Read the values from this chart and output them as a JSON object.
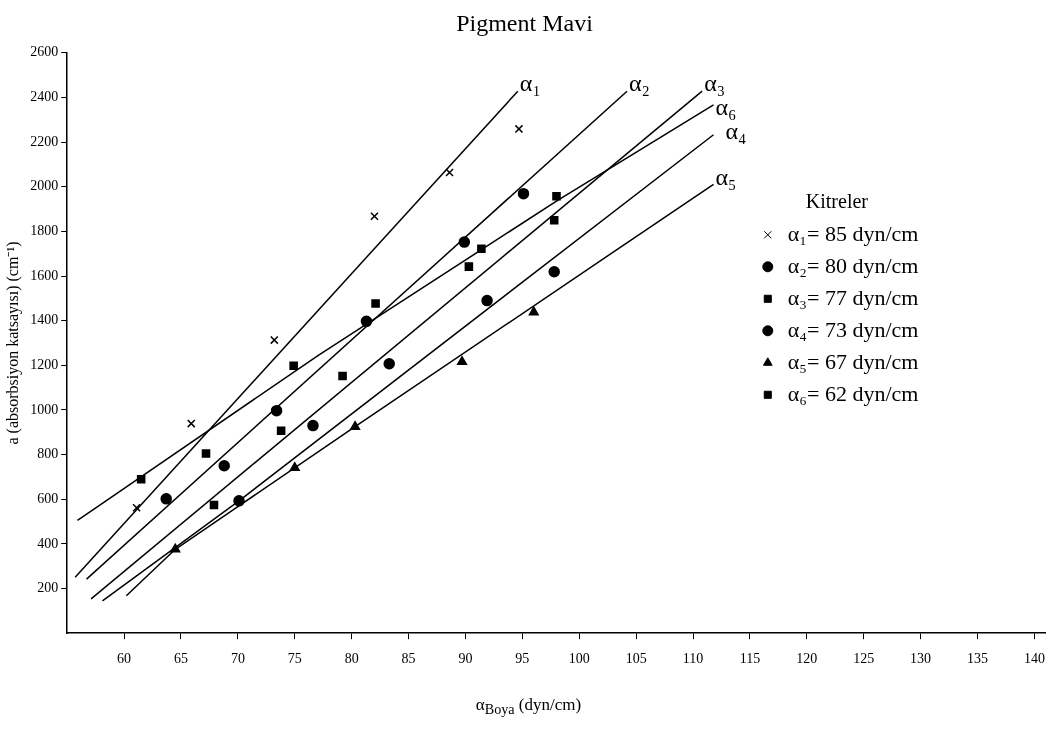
{
  "chart_data": {
    "type": "scatter",
    "title": "Pigment Mavi",
    "xlabel": "α$_{Boya}$ (dyn/cm)",
    "ylabel": "a (absorbsiyon katsayısı) (cm⁻¹)",
    "legend_title": "Kitreler",
    "legend": "right",
    "grid": false,
    "xlim": [
      55,
      141
    ],
    "xticks": [
      60,
      65,
      70,
      75,
      80,
      85,
      90,
      95,
      100,
      105,
      110,
      115,
      120,
      125,
      130,
      135,
      140
    ],
    "ylim": [
      0,
      2600
    ],
    "yticks": [
      200,
      400,
      600,
      800,
      1000,
      1200,
      1400,
      1600,
      1800,
      2000,
      2200,
      2400,
      2600
    ],
    "series": [
      {
        "name": "α₁= 85 dyn/cm",
        "marker": "cross",
        "color": "#000000",
        "x": [
          61.1,
          65.9,
          73.2,
          82.0,
          88.6,
          94.7
        ],
        "values": [
          562,
          939,
          1313,
          1868,
          2064,
          2259
        ]
      },
      {
        "name": "α₂= 80 dyn/cm",
        "marker": "circle",
        "color": "#000000",
        "x": [
          63.7,
          68.8,
          73.4,
          81.3,
          89.9,
          95.1
        ],
        "values": [
          602,
          750,
          997,
          1397,
          1752,
          1969
        ]
      },
      {
        "name": "α₃= 77 dyn/cm",
        "marker": "square",
        "color": "#000000",
        "x": [
          67.9,
          73.8,
          79.2,
          90.3,
          98.0
        ],
        "values": [
          574,
          907,
          1152,
          1642,
          1957
        ]
      },
      {
        "name": "α₄= 73 dyn/cm",
        "marker": "circle",
        "color": "#000000",
        "x": [
          70.1,
          76.6,
          83.3,
          91.9,
          97.8
        ],
        "values": [
          593,
          930,
          1207,
          1490,
          1619
        ]
      },
      {
        "name": "α₅= 67 dyn/cm",
        "marker": "triangle",
        "color": "#000000",
        "x": [
          64.5,
          75.0,
          80.3,
          89.7,
          96.0
        ],
        "values": [
          376,
          741,
          925,
          1216,
          1438
        ]
      },
      {
        "name": "α₆= 62 dyn/cm",
        "marker": "square",
        "color": "#000000",
        "x": [
          61.5,
          67.2,
          74.9,
          82.1,
          91.4,
          97.8
        ],
        "values": [
          690,
          805,
          1198,
          1477,
          1722,
          1850
        ]
      },
      {
        "name": "α₁",
        "type": "line",
        "marker": "none",
        "line_style": "solid",
        "color": "#000000",
        "x": [
          55.7,
          94.6
        ],
        "values": [
          251,
          2428
        ]
      },
      {
        "name": "α₂",
        "type": "line",
        "marker": "none",
        "line_style": "solid",
        "color": "#000000",
        "x": [
          56.7,
          104.2
        ],
        "values": [
          242,
          2428
        ]
      },
      {
        "name": "α₃",
        "type": "line",
        "marker": "none",
        "line_style": "solid",
        "color": "#000000",
        "x": [
          57.1,
          110.8
        ],
        "values": [
          154,
          2428
        ]
      },
      {
        "name": "α₆",
        "type": "line",
        "marker": "none",
        "line_style": "solid",
        "color": "#000000",
        "x": [
          55.9,
          77.1,
          98.1,
          111.8
        ],
        "values": [
          505,
          1246,
          1939,
          2367
        ]
      },
      {
        "name": "α₄",
        "type": "line",
        "marker": "none",
        "line_style": "solid",
        "color": "#000000",
        "x": [
          58.1,
          70.1,
          111.8
        ],
        "values": [
          145,
          593,
          2233
        ]
      },
      {
        "name": "α₅",
        "type": "line",
        "marker": "none",
        "line_style": "solid",
        "color": "#000000",
        "x": [
          60.2,
          64.5,
          80.3,
          111.8
        ],
        "values": [
          168,
          376,
          925,
          2011
        ]
      }
    ]
  }
}
